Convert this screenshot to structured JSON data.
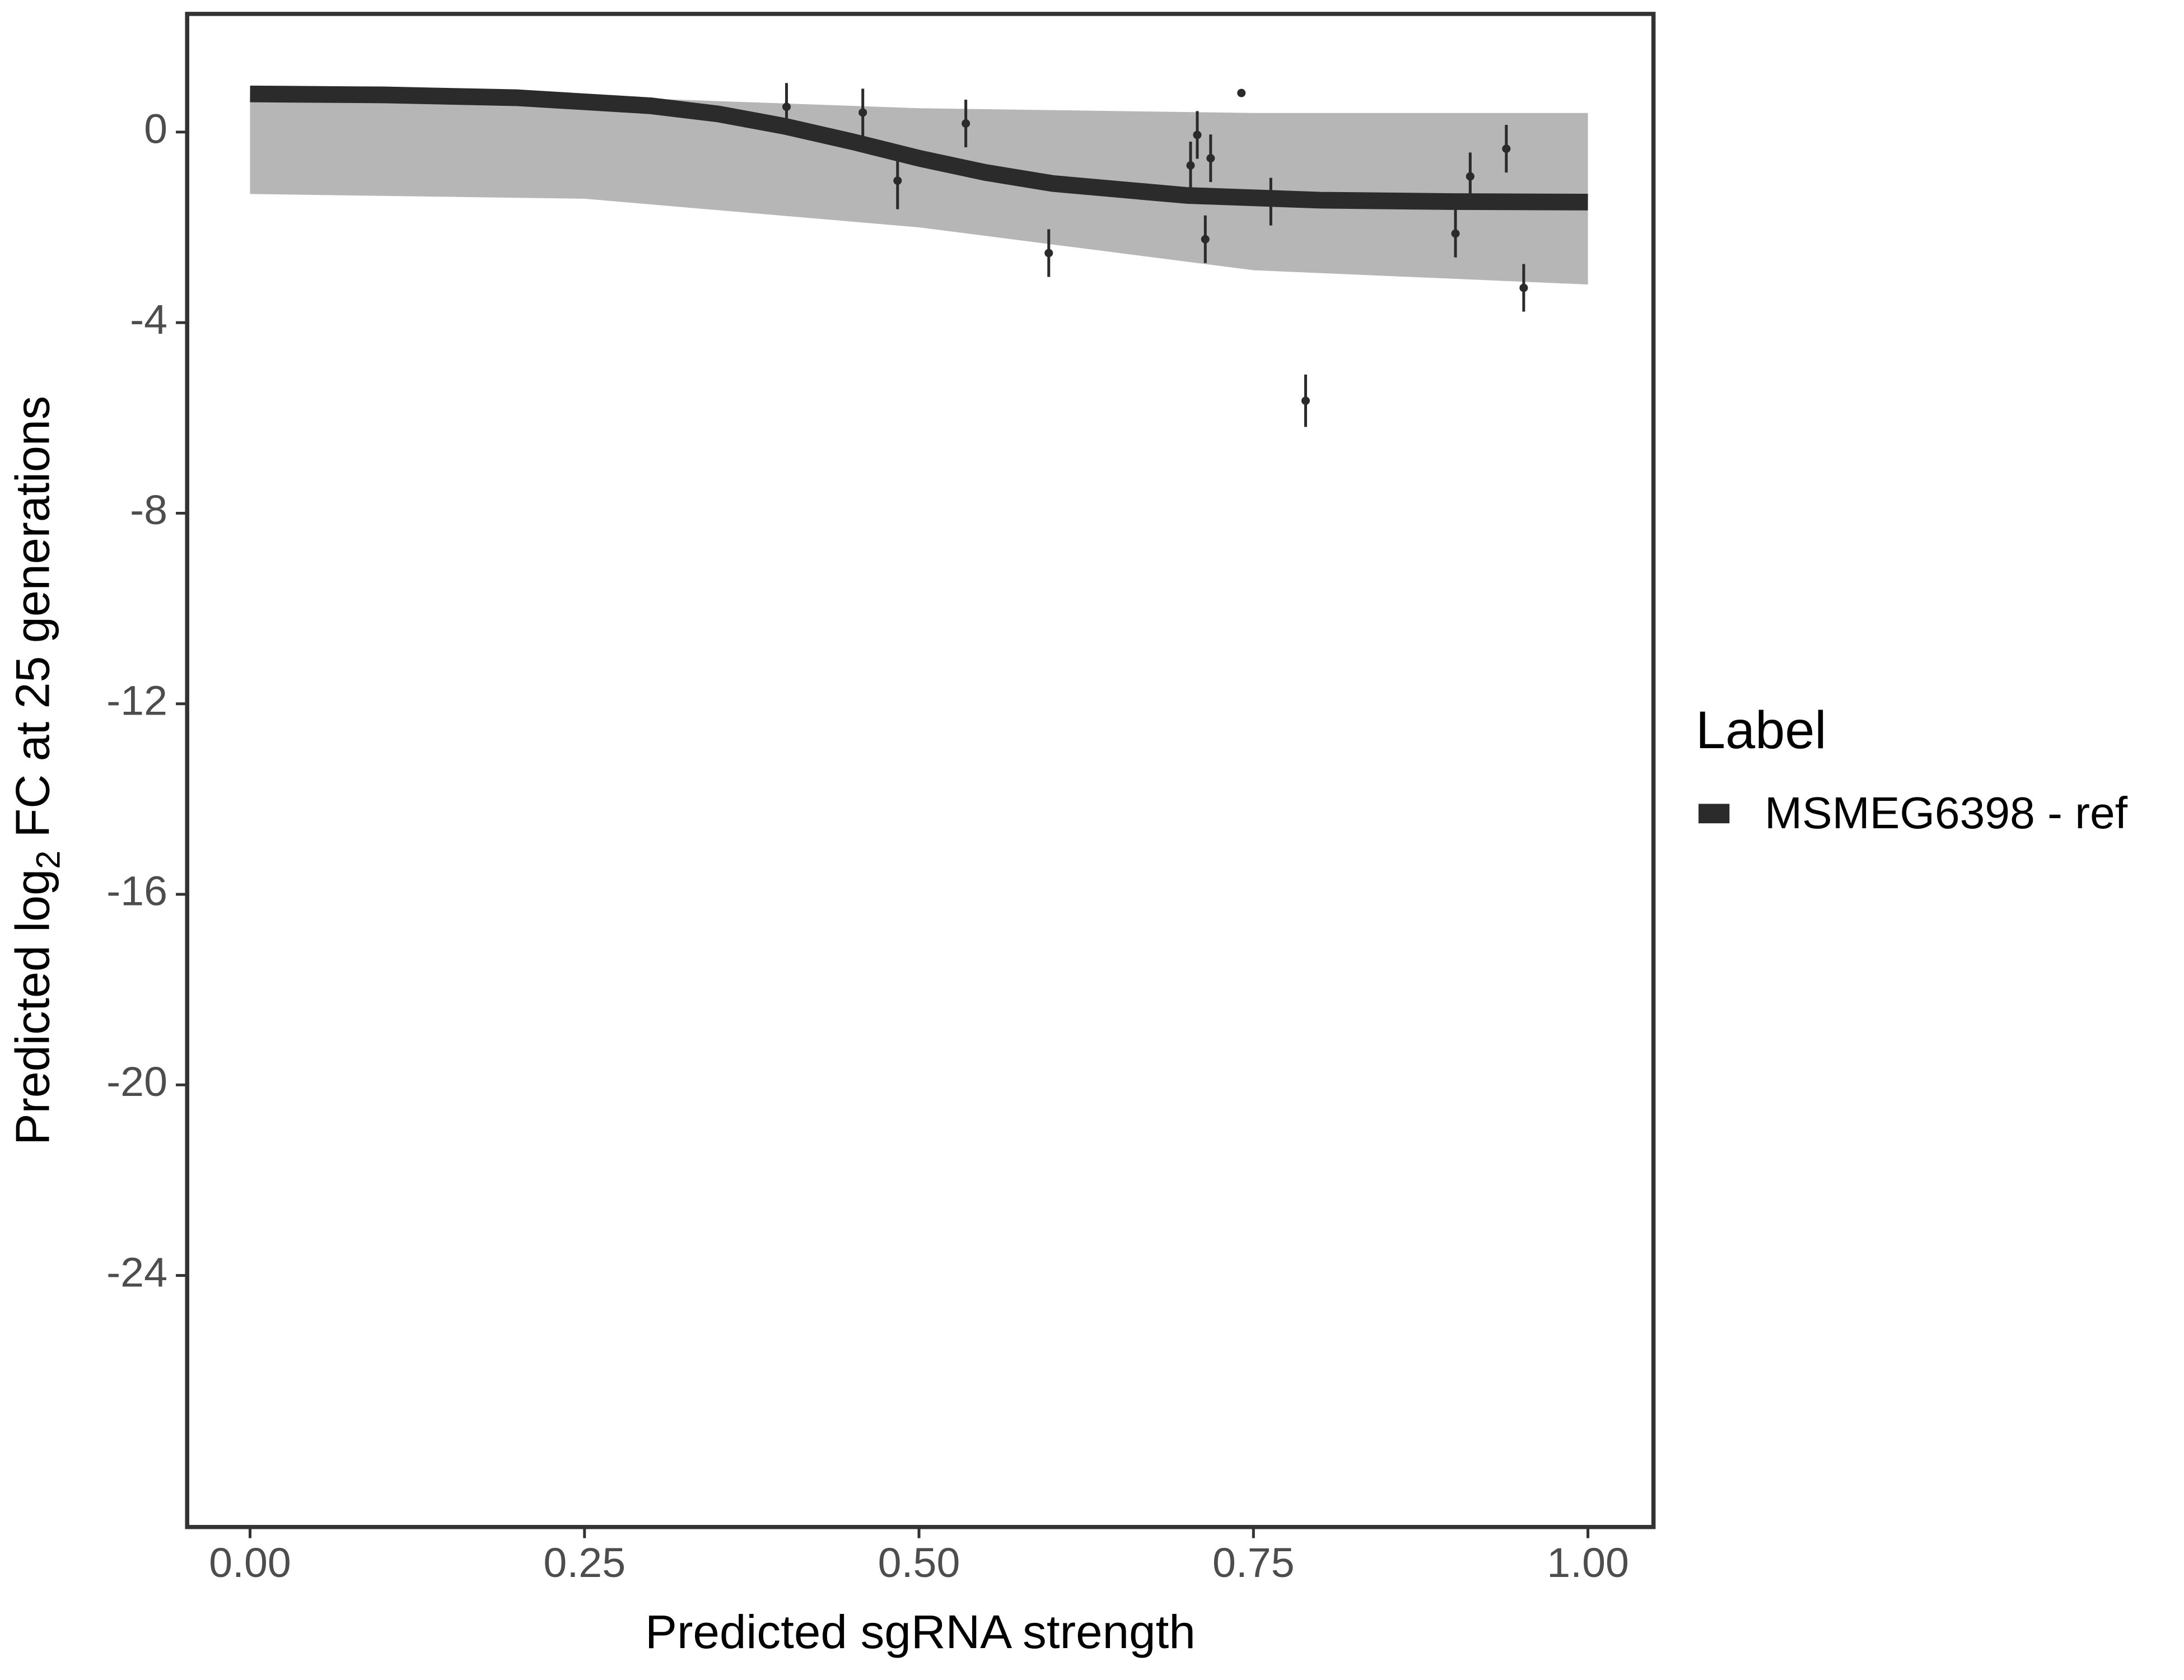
{
  "chart_data": {
    "type": "scatter",
    "xlabel": "Predicted sgRNA strength",
    "ylabel_parts": [
      "Predicted  log",
      "2",
      " FC at 25 generations"
    ],
    "legend_title": "Label",
    "xlim": [
      -0.047,
      1.049
    ],
    "ylim": [
      -29.28,
      2.48
    ],
    "xticks": [
      {
        "value": 0,
        "label": "0.00"
      },
      {
        "value": 0.25,
        "label": "0.25"
      },
      {
        "value": 0.5,
        "label": "0.50"
      },
      {
        "value": 0.75,
        "label": "0.75"
      },
      {
        "value": 1,
        "label": "1.00"
      }
    ],
    "yticks": [
      0,
      -4,
      -8,
      -12,
      -16,
      -20,
      -24
    ],
    "series": [
      {
        "name": "MSMEG6398 - ref",
        "color": "#2b2b2b",
        "x": [
          0.401,
          0.458,
          0.484,
          0.535,
          0.597,
          0.703,
          0.708,
          0.714,
          0.718,
          0.741,
          0.763,
          0.789,
          0.901,
          0.912,
          0.939,
          0.952
        ],
        "values": [
          0.53,
          0.41,
          -1.02,
          0.18,
          -2.54,
          -0.7,
          -0.06,
          -2.25,
          -0.55,
          0.82,
          -1.46,
          -5.64,
          -2.13,
          -0.93,
          -0.35,
          -3.27
        ],
        "errors": [
          0.5,
          0.5,
          0.6,
          0.5,
          0.5,
          0.5,
          0.5,
          0.5,
          0.5,
          0,
          0.5,
          0.55,
          0.5,
          0.5,
          0.5,
          0.5
        ]
      }
    ],
    "fit": {
      "x": [
        0,
        0.1,
        0.2,
        0.3,
        0.35,
        0.4,
        0.45,
        0.5,
        0.55,
        0.6,
        0.7,
        0.8,
        0.9,
        1.0
      ],
      "values": [
        0.8,
        0.78,
        0.72,
        0.55,
        0.38,
        0.12,
        -0.2,
        -0.55,
        -0.85,
        -1.08,
        -1.33,
        -1.43,
        -1.46,
        -1.47
      ]
    },
    "band": {
      "x": [
        0,
        0.25,
        0.5,
        0.75,
        1.0
      ],
      "upper": [
        0.8,
        0.75,
        0.5,
        0.4,
        0.4
      ],
      "lower": [
        -1.3,
        -1.4,
        -2.0,
        -2.9,
        -3.2
      ],
      "color": "#9e9e9e"
    }
  }
}
